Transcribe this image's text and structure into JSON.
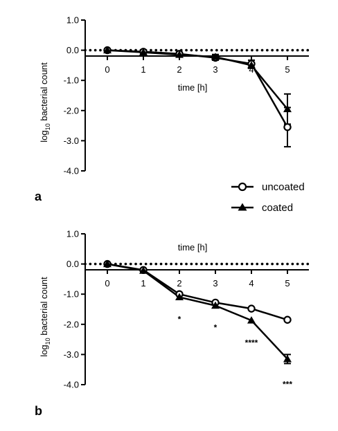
{
  "chart_data": [
    {
      "panel_label": "a",
      "type": "line",
      "xlabel": "time [h]",
      "ylabel_base": "log",
      "ylabel_sub": "10",
      "ylabel_rest": " bacterial count",
      "x": [
        0,
        1,
        2,
        3,
        4,
        5
      ],
      "ylim": [
        -4.0,
        1.0
      ],
      "yticks": [
        "1.0",
        "0.0",
        "-1.0",
        "-2.0",
        "-3.0",
        "-4.0"
      ],
      "xticks": [
        "0",
        "1",
        "2",
        "3",
        "4",
        "5"
      ],
      "reference_line": 0.0,
      "series": [
        {
          "name": "uncoated",
          "marker": "open-circle",
          "values": [
            0.0,
            -0.05,
            -0.12,
            -0.25,
            -0.45,
            -2.55
          ],
          "errors": [
            0,
            0,
            0.03,
            0.08,
            0.12,
            0.65
          ]
        },
        {
          "name": "coated",
          "marker": "triangle",
          "values": [
            0.0,
            -0.07,
            -0.15,
            -0.22,
            -0.5,
            -1.95
          ],
          "errors": [
            0,
            0,
            0.03,
            0.08,
            0.1,
            0.5
          ]
        }
      ],
      "significance": []
    },
    {
      "panel_label": "b",
      "type": "line",
      "xlabel": "time [h]",
      "ylabel_base": "log",
      "ylabel_sub": "10",
      "ylabel_rest": " bacterial count",
      "x": [
        0,
        1,
        2,
        3,
        4,
        5
      ],
      "ylim": [
        -4.0,
        1.0
      ],
      "yticks": [
        "1.0",
        "0.0",
        "-1.0",
        "-2.0",
        "-3.0",
        "-4.0"
      ],
      "xticks": [
        "0",
        "1",
        "2",
        "3",
        "4",
        "5"
      ],
      "reference_line": 0.0,
      "series": [
        {
          "name": "uncoated",
          "marker": "open-circle",
          "values": [
            0.0,
            -0.2,
            -1.0,
            -1.28,
            -1.48,
            -1.85
          ],
          "errors": [
            0,
            0,
            0.04,
            0.04,
            0.04,
            0.05
          ]
        },
        {
          "name": "coated",
          "marker": "triangle",
          "values": [
            0.0,
            -0.22,
            -1.1,
            -1.38,
            -1.87,
            -3.15
          ],
          "errors": [
            0,
            0,
            0.04,
            0.04,
            0.05,
            0.15
          ]
        }
      ],
      "significance": [
        {
          "x": 2,
          "label": "*"
        },
        {
          "x": 3,
          "label": "*"
        },
        {
          "x": 4,
          "label": "****"
        },
        {
          "x": 5,
          "label": "***"
        }
      ]
    }
  ],
  "legend": {
    "uncoated_label": "uncoated",
    "coated_label": "coated"
  },
  "colors": {
    "ink": "#000000",
    "background": "#ffffff"
  }
}
